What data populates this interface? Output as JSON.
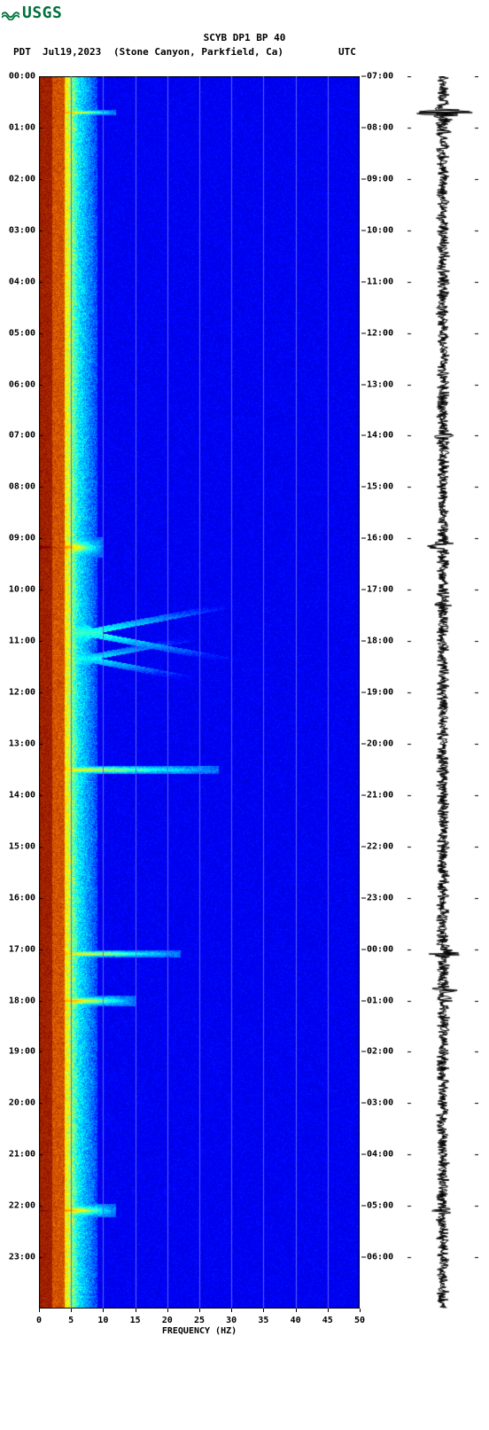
{
  "logo": {
    "text": "USGS",
    "color": "#00703c",
    "wave_color": "#00703c"
  },
  "header": {
    "title1": "SCYB DP1 BP 40",
    "date": "Jul19,2023",
    "location": "(Stone Canyon, Parkfield, Ca)",
    "tz_left": "PDT",
    "tz_right": "UTC"
  },
  "spectrogram": {
    "type": "spectrogram",
    "xlim": [
      0,
      50
    ],
    "xtick_step": 5,
    "xticks": [
      0,
      5,
      10,
      15,
      20,
      25,
      30,
      35,
      40,
      45,
      50
    ],
    "xlabel": "FREQUENCY (HZ)",
    "label_fontsize": 10,
    "tick_fontsize": 10,
    "background_color": "#0000ff",
    "grid_color": "#6060ff",
    "colormap_stops": [
      {
        "v": 0.0,
        "color": "#000080"
      },
      {
        "v": 0.15,
        "color": "#0000ff"
      },
      {
        "v": 0.4,
        "color": "#00ffff"
      },
      {
        "v": 0.6,
        "color": "#ffff00"
      },
      {
        "v": 0.8,
        "color": "#ff8000"
      },
      {
        "v": 1.0,
        "color": "#800000"
      }
    ],
    "time_axis_left": {
      "label": "PDT",
      "hours": [
        "00:00",
        "01:00",
        "02:00",
        "03:00",
        "04:00",
        "05:00",
        "06:00",
        "07:00",
        "08:00",
        "09:00",
        "10:00",
        "11:00",
        "12:00",
        "13:00",
        "14:00",
        "15:00",
        "16:00",
        "17:00",
        "18:00",
        "19:00",
        "20:00",
        "21:00",
        "22:00",
        "23:00"
      ]
    },
    "time_axis_right": {
      "label": "UTC",
      "hours": [
        "07:00",
        "08:00",
        "09:00",
        "10:00",
        "11:00",
        "12:00",
        "13:00",
        "14:00",
        "15:00",
        "16:00",
        "17:00",
        "18:00",
        "19:00",
        "20:00",
        "21:00",
        "22:00",
        "23:00",
        "00:00",
        "01:00",
        "02:00",
        "03:00",
        "04:00",
        "05:00",
        "06:00"
      ]
    },
    "low_freq_band": {
      "freq_range": [
        0,
        4
      ],
      "intensity": 0.92,
      "color_desc": "dark red/maroon continuous band"
    },
    "transition_band": {
      "freq_range": [
        4,
        8
      ],
      "intensity": 0.55,
      "color_desc": "yellow to cyan gradient"
    },
    "events": [
      {
        "pdt": "00:42",
        "freq_extent": 12,
        "intensity": 0.85,
        "width_min": 3
      },
      {
        "pdt": "09:10",
        "freq_extent": 10,
        "intensity": 0.9,
        "width_min": 12
      },
      {
        "pdt": "10:50",
        "freq_extent": 38,
        "intensity": 0.45,
        "width_min": 40,
        "shape": "V-dispersive"
      },
      {
        "pdt": "11:20",
        "freq_extent": 40,
        "intensity": 0.4,
        "width_min": 30,
        "shape": "V-dispersive"
      },
      {
        "pdt": "13:30",
        "freq_extent": 28,
        "intensity": 0.5,
        "width_min": 5
      },
      {
        "pdt": "17:05",
        "freq_extent": 22,
        "intensity": 0.6,
        "width_min": 4
      },
      {
        "pdt": "18:00",
        "freq_extent": 15,
        "intensity": 0.75,
        "width_min": 6
      },
      {
        "pdt": "22:05",
        "freq_extent": 12,
        "intensity": 0.8,
        "width_min": 8
      }
    ]
  },
  "seismogram": {
    "type": "waveform",
    "color": "#000000",
    "background_color": "#ffffff",
    "baseline_amp": 0.15,
    "spikes": [
      {
        "pdt_hour": 0.7,
        "amp": 1.0
      },
      {
        "pdt_hour": 1.1,
        "amp": 0.3
      },
      {
        "pdt_hour": 7.0,
        "amp": 0.35
      },
      {
        "pdt_hour": 9.15,
        "amp": 0.55
      },
      {
        "pdt_hour": 10.3,
        "amp": 0.3
      },
      {
        "pdt_hour": 14.9,
        "amp": 0.35
      },
      {
        "pdt_hour": 17.08,
        "amp": 0.7
      },
      {
        "pdt_hour": 17.8,
        "amp": 0.45
      },
      {
        "pdt_hour": 18.0,
        "amp": 0.4
      },
      {
        "pdt_hour": 22.1,
        "amp": 0.35
      }
    ]
  }
}
